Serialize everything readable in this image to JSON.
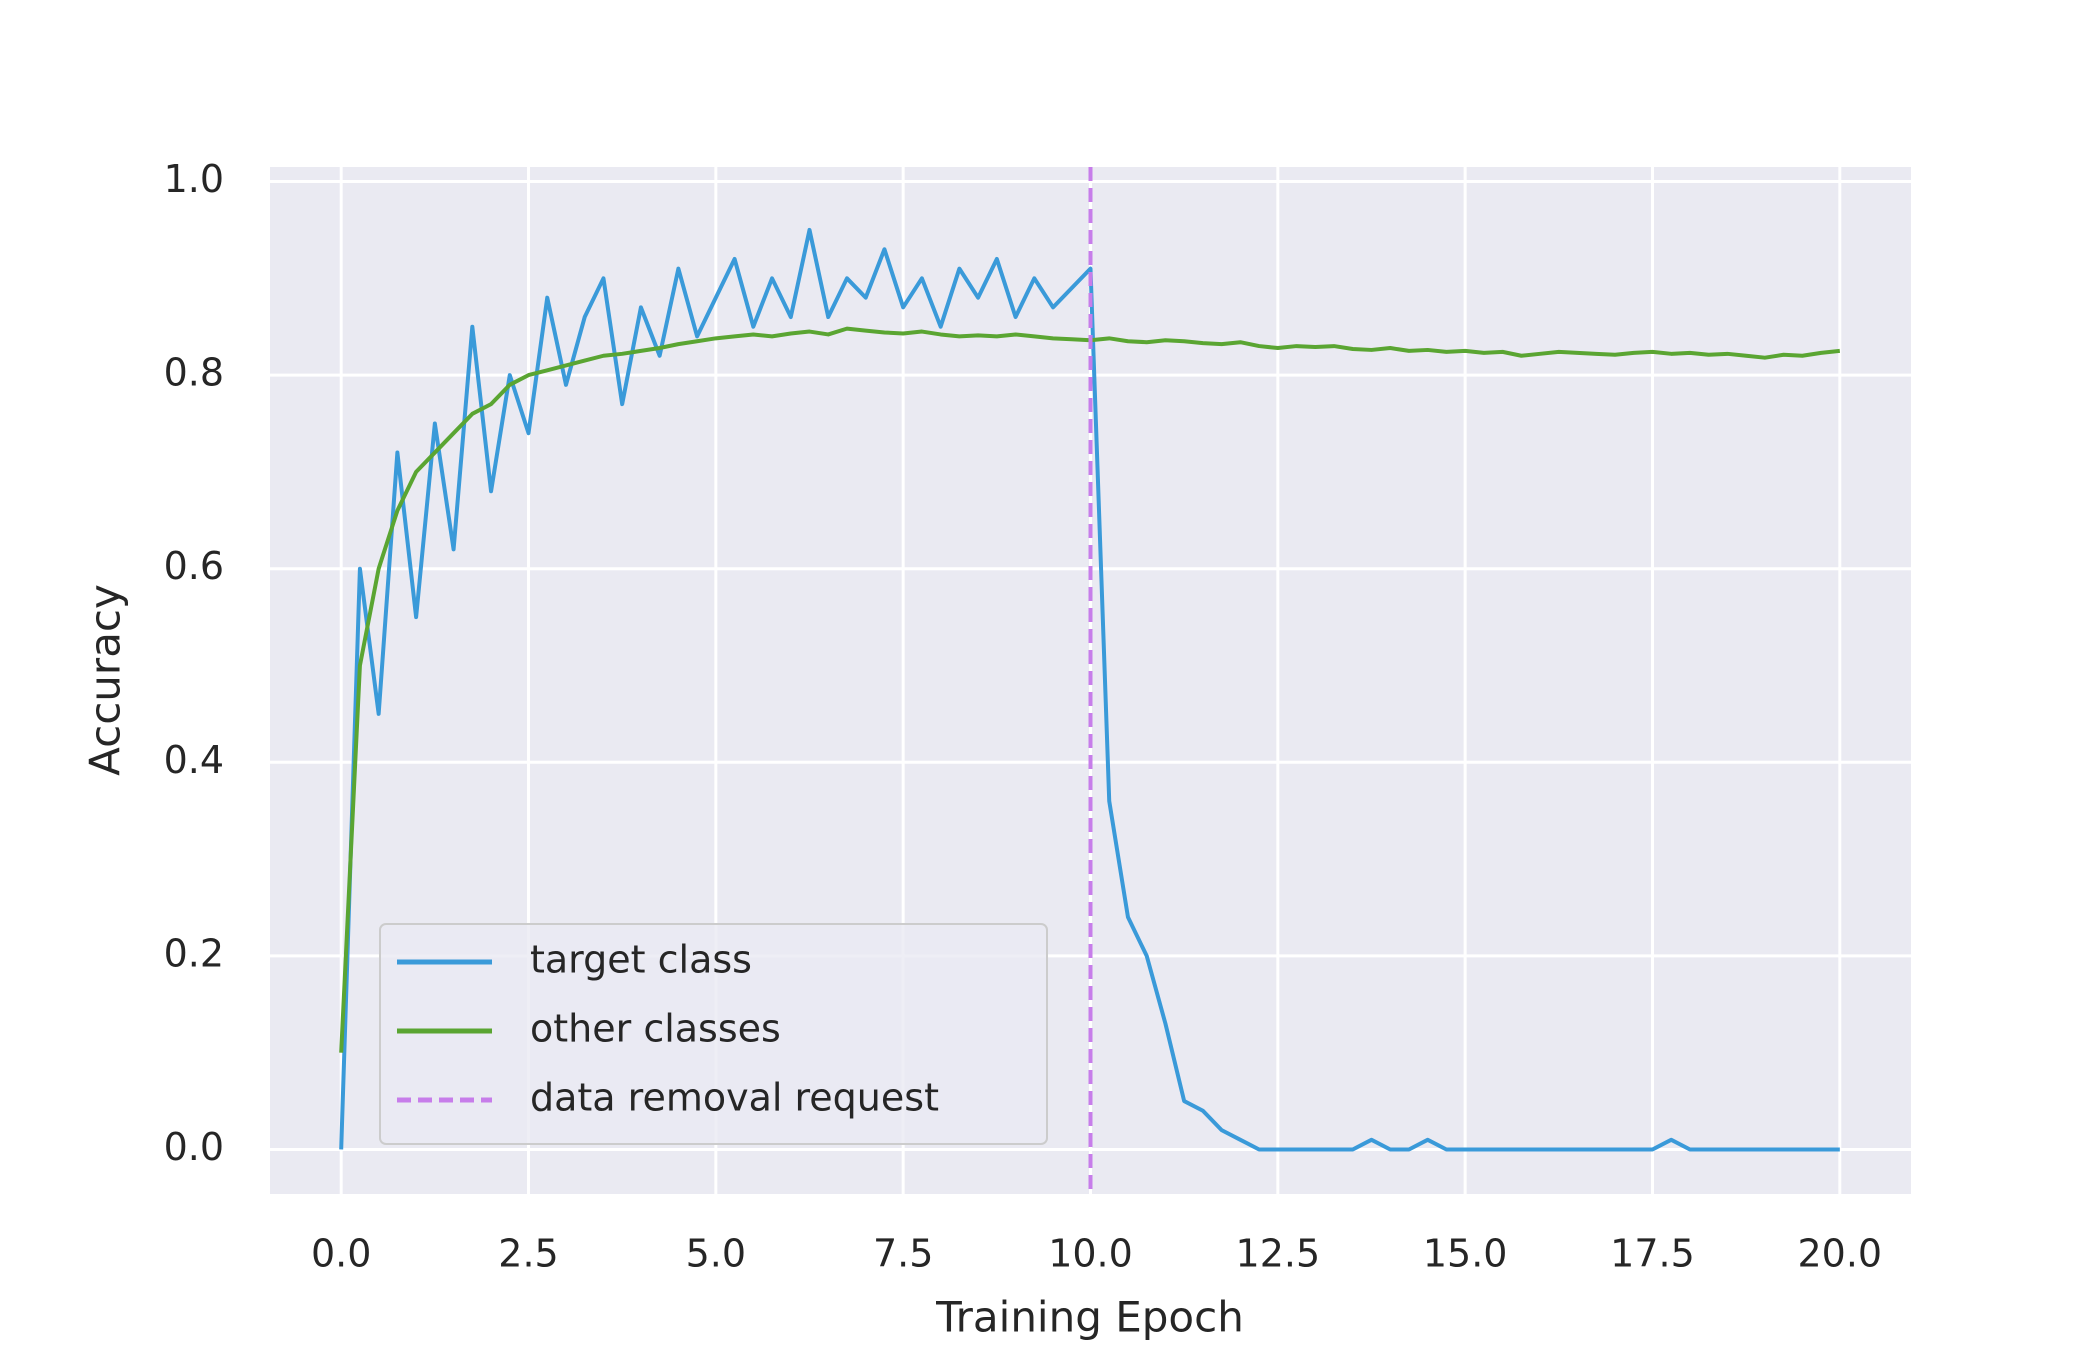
{
  "chart_data": {
    "type": "line",
    "xlabel": "Training Epoch",
    "ylabel": "Accuracy",
    "x": [
      0,
      0.25,
      0.5,
      0.75,
      1,
      1.25,
      1.5,
      1.75,
      2,
      2.25,
      2.5,
      2.75,
      3,
      3.25,
      3.5,
      3.75,
      4,
      4.25,
      4.5,
      4.75,
      5,
      5.25,
      5.5,
      5.75,
      6,
      6.25,
      6.5,
      6.75,
      7,
      7.25,
      7.5,
      7.75,
      8,
      8.25,
      8.5,
      8.75,
      9,
      9.25,
      9.5,
      9.75,
      10,
      10.25,
      10.5,
      10.75,
      11,
      11.25,
      11.5,
      11.75,
      12,
      12.25,
      12.5,
      12.75,
      13,
      13.25,
      13.5,
      13.75,
      14,
      14.25,
      14.5,
      14.75,
      15,
      15.25,
      15.5,
      15.75,
      16,
      16.25,
      16.5,
      16.75,
      17,
      17.25,
      17.5,
      17.75,
      18,
      18.25,
      18.5,
      18.75,
      19,
      19.25,
      19.5,
      19.75,
      20
    ],
    "series": [
      {
        "name": "target class",
        "color": "#3a9ad9",
        "values": [
          0,
          0.6,
          0.45,
          0.72,
          0.55,
          0.75,
          0.62,
          0.85,
          0.68,
          0.8,
          0.74,
          0.88,
          0.79,
          0.86,
          0.9,
          0.77,
          0.87,
          0.82,
          0.91,
          0.84,
          0.88,
          0.92,
          0.85,
          0.9,
          0.86,
          0.95,
          0.86,
          0.9,
          0.88,
          0.93,
          0.87,
          0.9,
          0.85,
          0.91,
          0.88,
          0.92,
          0.86,
          0.9,
          0.87,
          0.89,
          0.91,
          0.36,
          0.24,
          0.2,
          0.13,
          0.05,
          0.04,
          0.02,
          0.01,
          0,
          0,
          0,
          0,
          0,
          0,
          0.01,
          0,
          0,
          0.01,
          0,
          0,
          0,
          0,
          0,
          0,
          0,
          0,
          0,
          0,
          0,
          0,
          0.01,
          0,
          0,
          0,
          0,
          0,
          0,
          0,
          0,
          0
        ]
      },
      {
        "name": "other classes",
        "color": "#5aa532",
        "values": [
          0.1,
          0.5,
          0.6,
          0.66,
          0.7,
          0.72,
          0.74,
          0.76,
          0.77,
          0.79,
          0.8,
          0.805,
          0.81,
          0.815,
          0.82,
          0.822,
          0.825,
          0.828,
          0.832,
          0.835,
          0.838,
          0.84,
          0.842,
          0.84,
          0.843,
          0.845,
          0.842,
          0.848,
          0.846,
          0.844,
          0.843,
          0.845,
          0.842,
          0.84,
          0.841,
          0.84,
          0.842,
          0.84,
          0.838,
          0.837,
          0.836,
          0.838,
          0.835,
          0.834,
          0.836,
          0.835,
          0.833,
          0.832,
          0.834,
          0.83,
          0.828,
          0.83,
          0.829,
          0.83,
          0.827,
          0.826,
          0.828,
          0.825,
          0.826,
          0.824,
          0.825,
          0.823,
          0.824,
          0.82,
          0.822,
          0.824,
          0.823,
          0.822,
          0.821,
          0.823,
          0.824,
          0.822,
          0.823,
          0.821,
          0.822,
          0.82,
          0.818,
          0.821,
          0.82,
          0.823,
          0.825
        ]
      }
    ],
    "vline": {
      "x": 10,
      "name": "data removal request",
      "color": "#c77dea"
    },
    "xlim": [
      -0.95,
      20.95
    ],
    "ylim": [
      -0.046,
      1.015
    ],
    "xticks": [
      {
        "value": 0,
        "label": "0.0"
      },
      2.5,
      {
        "value": 5,
        "label": "5.0"
      },
      7.5,
      {
        "value": 10,
        "label": "10.0"
      },
      12.5,
      {
        "value": 15,
        "label": "15.0"
      },
      17.5,
      {
        "value": 20,
        "label": "20.0"
      }
    ],
    "yticks": [
      {
        "value": 0,
        "label": "0.0"
      },
      0.2,
      0.4,
      0.6,
      0.8,
      {
        "value": 1,
        "label": "1.0"
      }
    ],
    "grid": true,
    "legend": "lower left"
  }
}
